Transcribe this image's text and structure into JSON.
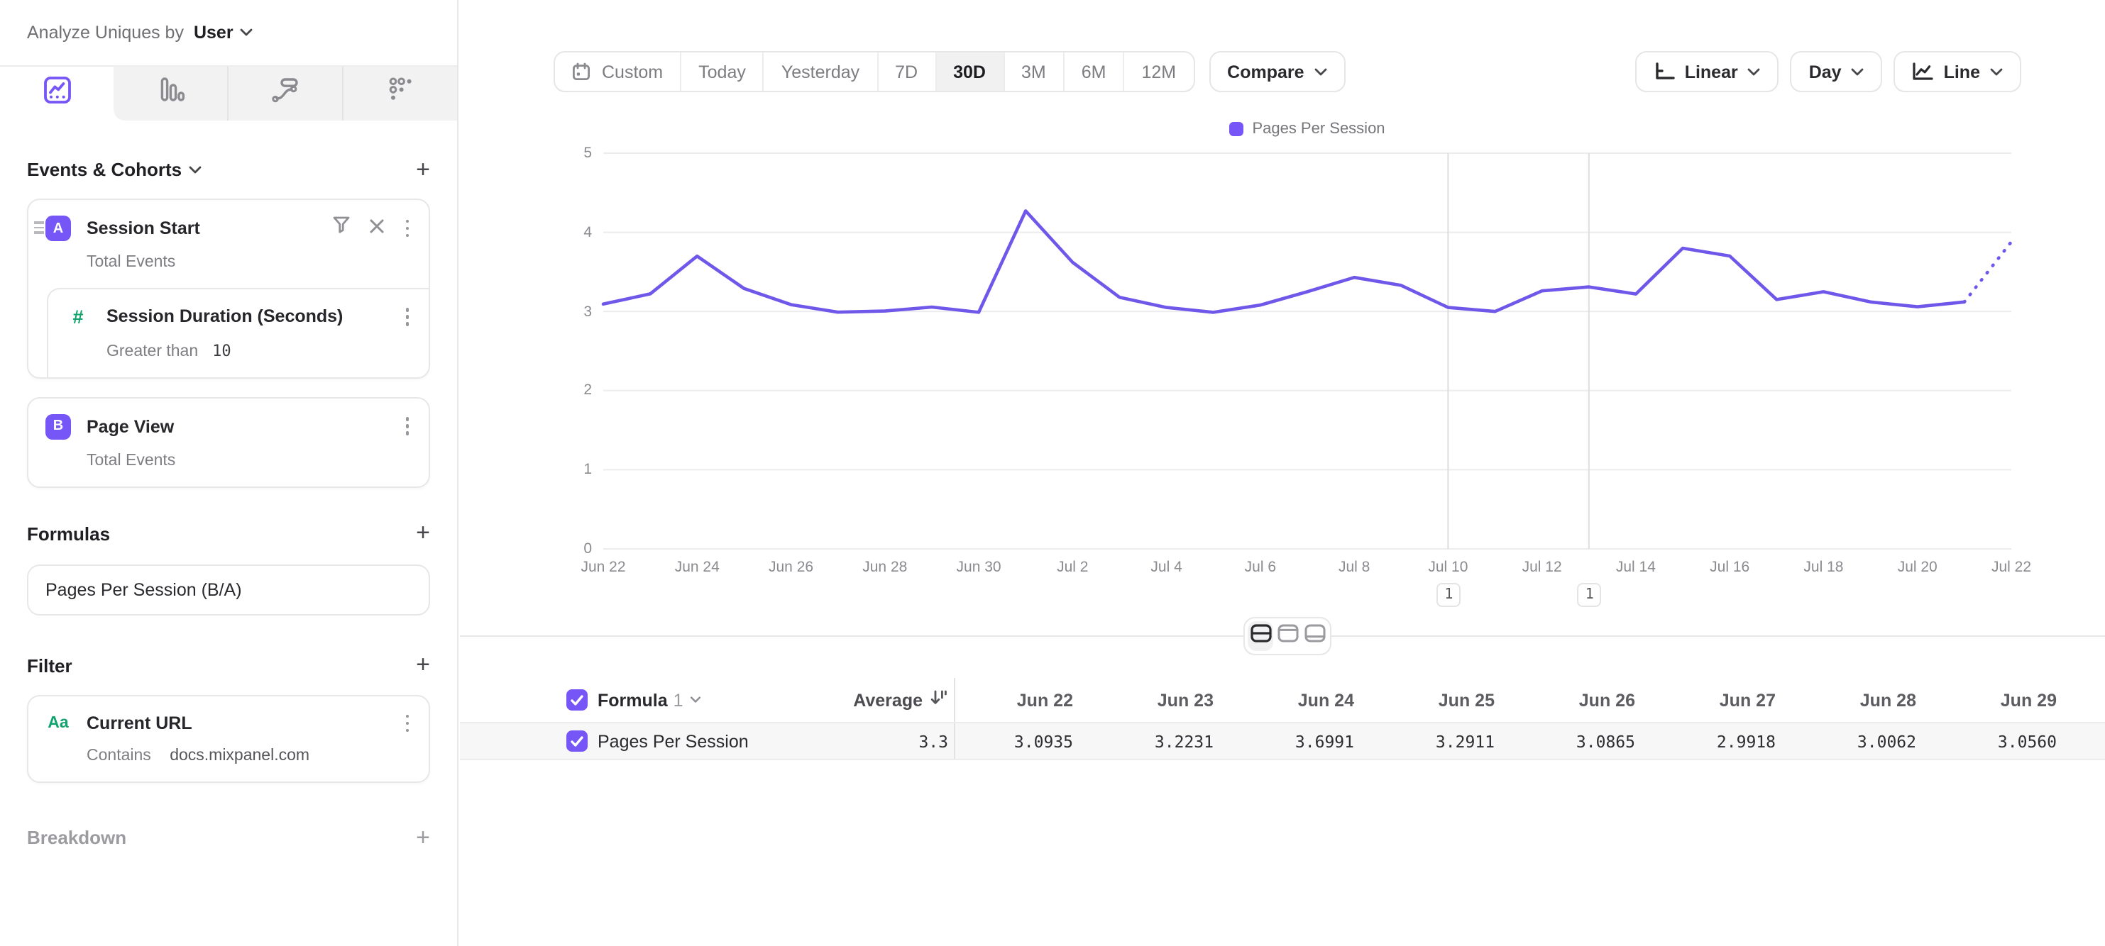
{
  "header": {
    "label": "Analyze Uniques by",
    "value": "User"
  },
  "sidebar": {
    "tabs": [
      {
        "icon": "insights-line-chart-icon",
        "active": true
      },
      {
        "icon": "bar-chart-icon",
        "active": false
      },
      {
        "icon": "flows-icon",
        "active": false
      },
      {
        "icon": "retention-grid-icon",
        "active": false
      }
    ],
    "events_section": {
      "title": "Events & Cohorts"
    },
    "events": [
      {
        "letter": "A",
        "name": "Session Start",
        "subtitle": "Total Events",
        "property": {
          "name": "Session Duration (Seconds)",
          "operator": "Greater than",
          "value": "10"
        }
      },
      {
        "letter": "B",
        "name": "Page View",
        "subtitle": "Total Events"
      }
    ],
    "formulas_section": {
      "title": "Formulas"
    },
    "formulas": [
      {
        "name": "Pages Per Session (B/A)"
      }
    ],
    "filter_section": {
      "title": "Filter"
    },
    "filters": [
      {
        "icon_text": "Aa",
        "name": "Current URL",
        "operator": "Contains",
        "value": "docs.mixpanel.com"
      }
    ],
    "breakdown_section": {
      "title": "Breakdown"
    }
  },
  "toolbar": {
    "ranges": [
      {
        "label": "Custom"
      },
      {
        "label": "Today"
      },
      {
        "label": "Yesterday"
      },
      {
        "label": "7D"
      },
      {
        "label": "30D",
        "active": true
      },
      {
        "label": "3M"
      },
      {
        "label": "6M"
      },
      {
        "label": "12M"
      }
    ],
    "compare_label": "Compare",
    "scale_label": "Linear",
    "interval_label": "Day",
    "chart_type_label": "Line"
  },
  "chart_data": {
    "type": "line",
    "title": "",
    "legend_entries": [
      {
        "label": "Pages Per Session",
        "color": "#7656f6"
      }
    ],
    "line_color": "#6f58e9",
    "grid": true,
    "ylim": [
      0,
      5
    ],
    "yticks": [
      0,
      1,
      2,
      3,
      4,
      5
    ],
    "x_tick_every": 2,
    "incomplete_final_segment_dashed": true,
    "x": [
      "Jun 22",
      "Jun 23",
      "Jun 24",
      "Jun 25",
      "Jun 26",
      "Jun 27",
      "Jun 28",
      "Jun 29",
      "Jun 30",
      "Jul 1",
      "Jul 2",
      "Jul 3",
      "Jul 4",
      "Jul 5",
      "Jul 6",
      "Jul 7",
      "Jul 8",
      "Jul 9",
      "Jul 10",
      "Jul 11",
      "Jul 12",
      "Jul 13",
      "Jul 14",
      "Jul 15",
      "Jul 16",
      "Jul 17",
      "Jul 18",
      "Jul 19",
      "Jul 20",
      "Jul 21",
      "Jul 22"
    ],
    "series": [
      {
        "name": "Pages Per Session",
        "values": [
          3.0935,
          3.2231,
          3.6991,
          3.2911,
          3.0865,
          2.9918,
          3.0062,
          3.056,
          2.99,
          4.27,
          3.62,
          3.18,
          3.05,
          2.99,
          3.08,
          3.25,
          3.43,
          3.33,
          3.05,
          3.0,
          3.26,
          3.31,
          3.22,
          3.8,
          3.7,
          3.15,
          3.25,
          3.12,
          3.06,
          3.12,
          3.88
        ]
      }
    ],
    "annotations": [
      {
        "index": 18,
        "date": "Jul 10",
        "label": "1"
      },
      {
        "index": 21,
        "date": "Jul 13",
        "label": "1"
      }
    ]
  },
  "view_toggle": {
    "options": [
      {
        "icon": "split-view-icon",
        "active": true
      },
      {
        "icon": "table-top-view-icon",
        "active": false
      },
      {
        "icon": "table-bottom-view-icon",
        "active": false
      }
    ]
  },
  "table": {
    "series_label": "Formula",
    "series_number": "1",
    "average_label": "Average",
    "columns": [
      "Jun 22",
      "Jun 23",
      "Jun 24",
      "Jun 25",
      "Jun 26",
      "Jun 27",
      "Jun 28",
      "Jun 29"
    ],
    "rows": [
      {
        "name": "Pages Per Session",
        "average": "3.3",
        "values": [
          "3.0935",
          "3.2231",
          "3.6991",
          "3.2911",
          "3.0865",
          "2.9918",
          "3.0062",
          "3.0560"
        ]
      }
    ]
  }
}
